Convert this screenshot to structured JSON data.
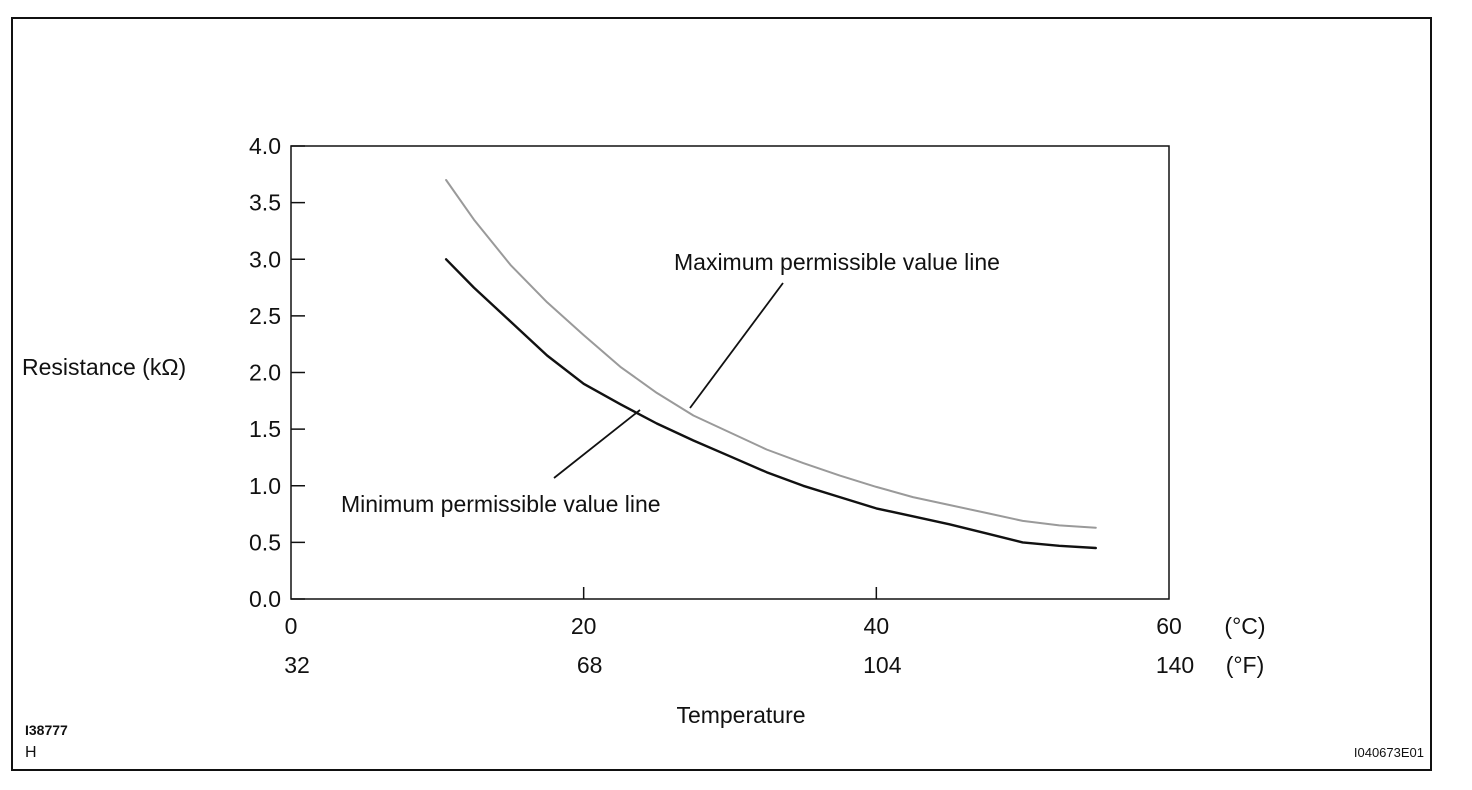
{
  "chart_data": {
    "type": "line",
    "title": "",
    "ylabel": "Resistance (kΩ)",
    "xlabel": "Temperature",
    "ylim": [
      0,
      4.0
    ],
    "xlim": [
      0,
      60
    ],
    "yticks": [
      "0.0",
      "0.5",
      "1.0",
      "1.5",
      "2.0",
      "2.5",
      "3.0",
      "3.5",
      "4.0"
    ],
    "xticks_c": {
      "values": [
        0,
        20,
        40,
        60
      ],
      "labels": [
        "0",
        "20",
        "40",
        "60"
      ],
      "unit": "(°C)"
    },
    "xticks_f": {
      "labels": [
        "32",
        "68",
        "104",
        "140"
      ],
      "unit": "(°F)"
    },
    "grid": false,
    "series": [
      {
        "name": "Maximum permissible value line",
        "color": "#9a9a9a",
        "x": [
          10.6,
          12.5,
          15,
          17.5,
          20,
          22.5,
          25,
          27.5,
          30,
          32.5,
          35,
          37.5,
          40,
          42.5,
          45,
          47.5,
          50,
          52.5,
          55
        ],
        "y": [
          3.7,
          3.35,
          2.95,
          2.62,
          2.33,
          2.05,
          1.82,
          1.62,
          1.47,
          1.32,
          1.2,
          1.09,
          0.99,
          0.9,
          0.83,
          0.76,
          0.69,
          0.65,
          0.63
        ]
      },
      {
        "name": "Minimum permissible value line",
        "color": "#111111",
        "x": [
          10.6,
          12.5,
          15,
          17.5,
          20,
          22.5,
          25,
          27.5,
          30,
          32.5,
          35,
          37.5,
          40,
          42.5,
          45,
          47.5,
          50,
          52.5,
          55
        ],
        "y": [
          3.0,
          2.75,
          2.45,
          2.15,
          1.9,
          1.72,
          1.55,
          1.4,
          1.26,
          1.12,
          1.0,
          0.9,
          0.8,
          0.73,
          0.66,
          0.58,
          0.5,
          0.47,
          0.45
        ]
      }
    ]
  },
  "annotations": {
    "max_label": "Maximum permissible value line",
    "min_label": "Minimum permissible value line"
  },
  "figure_ids": {
    "code_left": "I38777",
    "code_left_sub": "H",
    "code_right": "I040673E01"
  }
}
